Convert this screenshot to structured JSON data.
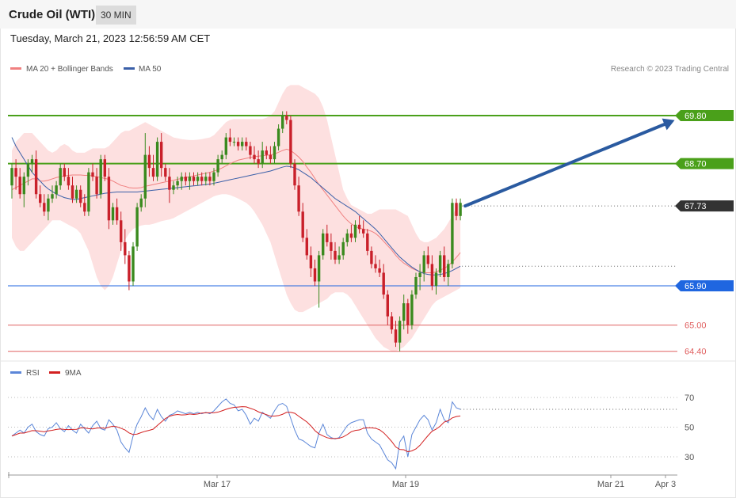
{
  "header": {
    "title": "Crude Oil (WTI)",
    "timeframe": "30 MIN",
    "datetime": "Tuesday, March 21, 2023 12:56:59 AM CET"
  },
  "legend": {
    "ma20": "MA 20 + Bollinger Bands",
    "ma50": "MA 50",
    "copyright": "Research © 2023 Trading Central"
  },
  "rsi_legend": {
    "rsi": "RSI",
    "ma9": "9MA"
  },
  "colors": {
    "bull": "#3a8a1e",
    "bear": "#c9202a",
    "resistance": "#4aa01a",
    "support": "#1f66e0",
    "target_support": "#e06060",
    "last_price": "#333333",
    "ma20": "#f08080",
    "ma50": "#3a5fa8",
    "bands": "#fde0e0",
    "rsi": "#5b86d8",
    "rsi_ma": "#d32020",
    "arrow": "#2a5aa0"
  },
  "chart_data": [
    {
      "type": "candlestick",
      "x_ticks": [
        "Mar 17",
        "Mar 19",
        "Mar 21",
        "Apr 3"
      ],
      "y_range": [
        64.0,
        71.0
      ],
      "levels": [
        {
          "value": 69.8,
          "label": "69.80",
          "kind": "resistance"
        },
        {
          "value": 68.7,
          "label": "68.70",
          "kind": "resistance"
        },
        {
          "value": 67.73,
          "label": "67.73",
          "kind": "last"
        },
        {
          "value": 65.9,
          "label": "65.90",
          "kind": "support"
        },
        {
          "value": 65.0,
          "label": "65.00",
          "kind": "target"
        },
        {
          "value": 64.4,
          "label": "64.40",
          "kind": "target"
        }
      ],
      "candles_ohlc": [
        [
          68.2,
          68.7,
          67.9,
          68.6
        ],
        [
          68.6,
          68.8,
          68.1,
          68.4
        ],
        [
          68.4,
          68.6,
          67.9,
          68.0
        ],
        [
          68.0,
          68.5,
          67.7,
          68.4
        ],
        [
          68.4,
          68.8,
          68.2,
          68.7
        ],
        [
          68.7,
          68.9,
          68.5,
          68.8
        ],
        [
          68.8,
          69.0,
          67.9,
          68.0
        ],
        [
          68.0,
          68.2,
          67.7,
          67.8
        ],
        [
          67.8,
          68.0,
          67.5,
          67.6
        ],
        [
          67.6,
          68.0,
          67.4,
          67.9
        ],
        [
          67.9,
          68.2,
          67.8,
          68.0
        ],
        [
          68.0,
          68.3,
          67.9,
          68.2
        ],
        [
          68.2,
          68.7,
          68.1,
          68.6
        ],
        [
          68.6,
          68.7,
          68.3,
          68.4
        ],
        [
          68.4,
          68.6,
          68.1,
          68.2
        ],
        [
          68.2,
          68.4,
          67.8,
          67.9
        ],
        [
          67.9,
          68.2,
          67.8,
          68.1
        ],
        [
          68.1,
          68.2,
          67.7,
          67.8
        ],
        [
          67.8,
          68.0,
          67.5,
          67.6
        ],
        [
          67.6,
          68.6,
          67.5,
          68.5
        ],
        [
          68.5,
          68.7,
          68.3,
          68.4
        ],
        [
          68.4,
          68.6,
          67.9,
          68.0
        ],
        [
          68.0,
          68.9,
          67.9,
          68.8
        ],
        [
          68.8,
          68.9,
          68.3,
          68.4
        ],
        [
          68.4,
          68.6,
          67.2,
          67.4
        ],
        [
          67.4,
          67.8,
          67.3,
          67.7
        ],
        [
          67.7,
          67.9,
          67.3,
          67.4
        ],
        [
          67.4,
          67.6,
          66.7,
          66.9
        ],
        [
          66.9,
          67.2,
          66.4,
          66.6
        ],
        [
          66.6,
          66.7,
          65.8,
          66.0
        ],
        [
          66.0,
          66.9,
          65.9,
          66.8
        ],
        [
          66.8,
          67.8,
          66.7,
          67.7
        ],
        [
          67.7,
          68.0,
          67.6,
          67.9
        ],
        [
          67.9,
          69.4,
          67.7,
          68.9
        ],
        [
          68.9,
          69.1,
          68.4,
          68.6
        ],
        [
          68.6,
          68.9,
          68.3,
          68.4
        ],
        [
          68.4,
          69.3,
          68.3,
          69.2
        ],
        [
          69.2,
          69.4,
          68.4,
          68.6
        ],
        [
          68.6,
          68.7,
          68.3,
          68.4
        ],
        [
          68.4,
          68.6,
          67.8,
          68.1
        ],
        [
          68.1,
          68.3,
          68.0,
          68.2
        ],
        [
          68.2,
          68.4,
          68.1,
          68.3
        ],
        [
          68.3,
          68.5,
          68.1,
          68.4
        ],
        [
          68.4,
          68.5,
          68.2,
          68.3
        ],
        [
          68.3,
          68.5,
          68.1,
          68.4
        ],
        [
          68.4,
          68.5,
          68.2,
          68.3
        ],
        [
          68.3,
          68.5,
          68.2,
          68.4
        ],
        [
          68.4,
          68.5,
          68.2,
          68.3
        ],
        [
          68.3,
          68.5,
          68.2,
          68.4
        ],
        [
          68.4,
          68.5,
          68.2,
          68.3
        ],
        [
          68.3,
          68.6,
          68.2,
          68.5
        ],
        [
          68.5,
          68.9,
          68.4,
          68.8
        ],
        [
          68.8,
          69.0,
          68.7,
          68.9
        ],
        [
          68.9,
          69.4,
          68.8,
          69.3
        ],
        [
          69.3,
          69.5,
          69.1,
          69.2
        ],
        [
          69.2,
          69.3,
          69.1,
          69.2
        ],
        [
          69.2,
          69.3,
          69.0,
          69.1
        ],
        [
          69.1,
          69.3,
          69.0,
          69.2
        ],
        [
          69.2,
          69.3,
          69.0,
          69.1
        ],
        [
          69.1,
          69.2,
          68.8,
          68.9
        ],
        [
          68.9,
          69.1,
          68.7,
          68.8
        ],
        [
          68.8,
          69.0,
          68.6,
          68.7
        ],
        [
          68.7,
          69.2,
          68.6,
          69.0
        ],
        [
          69.0,
          69.1,
          68.8,
          68.9
        ],
        [
          68.9,
          69.1,
          68.7,
          68.8
        ],
        [
          68.8,
          69.2,
          68.7,
          69.1
        ],
        [
          69.1,
          69.6,
          69.0,
          69.5
        ],
        [
          69.5,
          69.9,
          69.4,
          69.8
        ],
        [
          69.8,
          69.9,
          69.6,
          69.7
        ],
        [
          69.7,
          69.8,
          68.6,
          68.7
        ],
        [
          68.7,
          68.8,
          68.1,
          68.2
        ],
        [
          68.2,
          68.4,
          67.5,
          67.6
        ],
        [
          67.6,
          67.8,
          66.9,
          67.0
        ],
        [
          67.0,
          67.2,
          66.5,
          66.6
        ],
        [
          66.6,
          66.8,
          66.1,
          66.3
        ],
        [
          66.3,
          66.5,
          65.9,
          66.0
        ],
        [
          66.0,
          66.7,
          65.4,
          66.6
        ],
        [
          66.6,
          67.2,
          66.5,
          67.1
        ],
        [
          67.1,
          67.3,
          66.8,
          66.9
        ],
        [
          66.9,
          67.1,
          66.5,
          66.7
        ],
        [
          66.7,
          66.9,
          66.4,
          66.5
        ],
        [
          66.5,
          66.8,
          66.4,
          66.6
        ],
        [
          66.6,
          67.0,
          66.5,
          66.9
        ],
        [
          66.9,
          67.2,
          66.8,
          67.1
        ],
        [
          67.1,
          67.3,
          66.9,
          67.0
        ],
        [
          67.0,
          67.4,
          66.9,
          67.3
        ],
        [
          67.3,
          67.5,
          67.1,
          67.2
        ],
        [
          67.2,
          67.4,
          67.0,
          67.1
        ],
        [
          67.1,
          67.2,
          66.6,
          66.7
        ],
        [
          66.7,
          66.8,
          66.3,
          66.4
        ],
        [
          66.4,
          66.6,
          66.2,
          66.3
        ],
        [
          66.3,
          66.5,
          66.1,
          66.2
        ],
        [
          66.2,
          66.4,
          65.6,
          65.7
        ],
        [
          65.7,
          65.8,
          65.0,
          65.2
        ],
        [
          65.2,
          65.3,
          64.8,
          64.9
        ],
        [
          64.9,
          65.1,
          64.5,
          64.6
        ],
        [
          64.6,
          65.2,
          64.4,
          65.1
        ],
        [
          65.1,
          65.7,
          64.9,
          65.5
        ],
        [
          65.5,
          65.6,
          64.8,
          65.0
        ],
        [
          65.0,
          65.8,
          64.9,
          65.7
        ],
        [
          65.7,
          66.2,
          65.6,
          66.1
        ],
        [
          66.1,
          66.4,
          65.8,
          66.2
        ],
        [
          66.2,
          66.7,
          66.0,
          66.6
        ],
        [
          66.6,
          66.8,
          66.3,
          66.4
        ],
        [
          66.4,
          66.6,
          65.8,
          65.9
        ],
        [
          65.9,
          66.3,
          65.7,
          66.2
        ],
        [
          66.2,
          66.7,
          66.1,
          66.6
        ],
        [
          66.6,
          66.8,
          66.0,
          66.1
        ],
        [
          66.1,
          66.5,
          65.9,
          66.4
        ],
        [
          66.4,
          67.9,
          66.3,
          67.8
        ],
        [
          67.8,
          67.9,
          67.4,
          67.5
        ],
        [
          67.5,
          67.9,
          67.4,
          67.8
        ]
      ],
      "ma20": [
        68.1,
        68.15,
        68.2,
        68.25,
        68.3,
        68.35,
        68.35,
        68.3,
        68.3,
        68.32,
        68.35,
        68.38,
        68.4,
        68.42,
        68.43,
        68.44,
        68.44,
        68.44,
        68.43,
        68.43,
        68.42,
        68.4,
        68.38,
        68.36,
        68.34,
        68.3,
        68.25,
        68.2,
        68.18,
        68.15,
        68.14,
        68.14,
        68.15,
        68.18,
        68.2,
        68.22,
        68.24,
        68.26,
        68.28,
        68.3,
        68.32,
        68.34,
        68.36,
        68.38,
        68.4,
        68.42,
        68.44,
        68.46,
        68.48,
        68.5,
        68.53,
        68.56,
        68.6,
        68.65,
        68.7,
        68.74,
        68.78,
        68.8,
        68.82,
        68.84,
        68.86,
        68.87,
        68.88,
        68.89,
        68.9,
        68.92,
        68.96,
        69.0,
        69.03,
        69.0,
        68.93,
        68.85,
        68.75,
        68.62,
        68.5,
        68.36,
        68.22,
        68.1,
        67.98,
        67.86,
        67.74,
        67.62,
        67.5,
        67.4,
        67.32,
        67.26,
        67.22,
        67.2,
        67.18,
        67.15,
        67.1,
        67.02,
        66.92,
        66.82,
        66.72,
        66.6,
        66.5,
        66.42,
        66.36,
        66.3,
        66.26,
        66.22,
        66.2,
        66.2,
        66.2,
        66.22,
        66.26,
        66.3,
        66.36,
        66.45,
        66.55,
        66.66
      ],
      "ma50": [
        69.3,
        69.1,
        68.95,
        68.8,
        68.65,
        68.5,
        68.4,
        68.3,
        68.2,
        68.12,
        68.06,
        68.0,
        67.96,
        67.92,
        67.9,
        67.88,
        67.88,
        67.9,
        67.92,
        67.94,
        67.96,
        67.98,
        68.0,
        68.02,
        68.03,
        68.04,
        68.05,
        68.05,
        68.05,
        68.05,
        68.05,
        68.05,
        68.06,
        68.07,
        68.08,
        68.09,
        68.1,
        68.11,
        68.12,
        68.13,
        68.14,
        68.15,
        68.16,
        68.17,
        68.18,
        68.19,
        68.2,
        68.21,
        68.22,
        68.23,
        68.25,
        68.27,
        68.29,
        68.31,
        68.33,
        68.35,
        68.37,
        68.39,
        68.41,
        68.43,
        68.45,
        68.47,
        68.49,
        68.51,
        68.53,
        68.56,
        68.59,
        68.62,
        68.64,
        68.63,
        68.6,
        68.56,
        68.5,
        68.44,
        68.38,
        68.3,
        68.22,
        68.14,
        68.06,
        67.98,
        67.9,
        67.84,
        67.78,
        67.72,
        67.66,
        67.6,
        67.52,
        67.44,
        67.36,
        67.28,
        67.2,
        67.1,
        66.99,
        66.88,
        66.77,
        66.66,
        66.56,
        66.48,
        66.4,
        66.33,
        66.27,
        66.22,
        66.18,
        66.16,
        66.15,
        66.15,
        66.16,
        66.18,
        66.21,
        66.25,
        66.3,
        66.35
      ],
      "boll_upper": [
        69.0,
        69.2,
        69.3,
        69.4,
        69.4,
        69.4,
        69.3,
        69.2,
        69.1,
        69.0,
        68.95,
        69.0,
        69.1,
        69.15,
        69.1,
        69.0,
        68.95,
        68.95,
        68.95,
        69.0,
        69.05,
        69.05,
        69.05,
        69.05,
        69.1,
        69.2,
        69.3,
        69.4,
        69.45,
        69.45,
        69.5,
        69.55,
        69.6,
        69.65,
        69.6,
        69.55,
        69.5,
        69.45,
        69.4,
        69.35,
        69.3,
        69.28,
        69.26,
        69.25,
        69.24,
        69.24,
        69.25,
        69.26,
        69.28,
        69.3,
        69.35,
        69.45,
        69.55,
        69.65,
        69.7,
        69.72,
        69.72,
        69.72,
        69.72,
        69.72,
        69.72,
        69.72,
        69.72,
        69.75,
        69.8,
        69.9,
        70.1,
        70.3,
        70.45,
        70.5,
        70.5,
        70.5,
        70.45,
        70.4,
        70.35,
        70.3,
        70.2,
        70.0,
        69.7,
        69.3,
        68.9,
        68.5,
        68.1,
        67.9,
        67.75,
        67.7,
        67.65,
        67.6,
        67.55,
        67.55,
        67.6,
        67.65,
        67.65,
        67.65,
        67.65,
        67.65,
        67.6,
        67.55,
        67.5,
        67.3,
        67.1,
        66.95,
        66.9,
        66.9,
        66.95,
        67.0,
        67.1,
        67.2,
        67.35,
        67.5,
        67.7,
        67.85
      ],
      "boll_lower": [
        67.0,
        66.8,
        66.7,
        66.7,
        66.8,
        66.9,
        67.0,
        67.1,
        67.2,
        67.3,
        67.4,
        67.4,
        67.4,
        67.35,
        67.3,
        67.25,
        67.2,
        67.1,
        66.9,
        66.7,
        66.4,
        66.1,
        65.9,
        65.8,
        65.9,
        66.1,
        66.4,
        66.7,
        66.95,
        67.1,
        67.2,
        67.25,
        67.28,
        67.3,
        67.3,
        67.32,
        67.35,
        67.38,
        67.4,
        67.42,
        67.45,
        67.5,
        67.55,
        67.6,
        67.65,
        67.7,
        67.75,
        67.8,
        67.85,
        67.9,
        67.95,
        67.98,
        68.0,
        68.0,
        67.98,
        67.94,
        67.9,
        67.85,
        67.8,
        67.72,
        67.6,
        67.45,
        67.3,
        67.1,
        66.9,
        66.6,
        66.3,
        66.0,
        65.7,
        65.5,
        65.35,
        65.3,
        65.3,
        65.35,
        65.4,
        65.45,
        65.5,
        65.55,
        65.6,
        65.7,
        65.75,
        65.75,
        65.75,
        65.7,
        65.6,
        65.45,
        65.3,
        65.15,
        65.0,
        64.85,
        64.7,
        64.6,
        64.5,
        64.45,
        64.4,
        64.4,
        64.45,
        64.5,
        64.6,
        64.7,
        64.85,
        65.0,
        65.15,
        65.3,
        65.45,
        65.55,
        65.6,
        65.65,
        65.7,
        65.75,
        65.8,
        65.85
      ]
    },
    {
      "type": "line",
      "name_hint": "RSI",
      "y_ticks": [
        30,
        50,
        70
      ],
      "y_range": [
        20,
        78
      ],
      "rsi": [
        44,
        46,
        48,
        46,
        50,
        52,
        47,
        45,
        44,
        49,
        50,
        53,
        49,
        47,
        51,
        48,
        46,
        52,
        49,
        46,
        51,
        54,
        49,
        48,
        55,
        52,
        48,
        40,
        36,
        33,
        44,
        52,
        57,
        63,
        58,
        55,
        62,
        57,
        54,
        58,
        59,
        61,
        60,
        59,
        60,
        59,
        60,
        59,
        60,
        59,
        61,
        64,
        67,
        69,
        66,
        65,
        61,
        62,
        58,
        52,
        56,
        54,
        60,
        58,
        56,
        61,
        65,
        66,
        64,
        56,
        48,
        42,
        41,
        39,
        37,
        36,
        46,
        52,
        45,
        43,
        42,
        43,
        47,
        51,
        53,
        54,
        55,
        55,
        46,
        42,
        40,
        38,
        33,
        28,
        26,
        22,
        40,
        44,
        30,
        45,
        50,
        55,
        58,
        55,
        48,
        53,
        62,
        55,
        53,
        67,
        63,
        62
      ]
    }
  ]
}
